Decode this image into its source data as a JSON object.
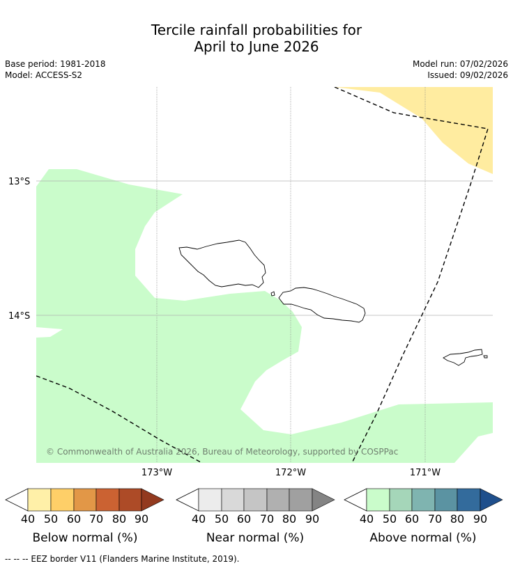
{
  "header": {
    "title_line1": "Tercile rainfall probabilities for",
    "title_line2": "April to June 2026",
    "base_period": "Base period: 1981-2018",
    "model": "Model: ACCESS-S2",
    "model_run": "Model run: 07/02/2026",
    "issued": "Issued: 09/02/2026"
  },
  "map": {
    "lat_labels": [
      "13°S",
      "14°S"
    ],
    "lon_labels": [
      "173°W",
      "172°W",
      "171°W"
    ],
    "copyright": "© Commonwealth of Australia 2026, Bureau of Meteorology, supported by COSPPac",
    "features": {
      "below_normal_40_50": "Below normal 40-50% region (north-east)",
      "above_normal_40_50": "Above normal 40-50% region",
      "eez_border": "EEZ border",
      "islands": [
        "Savai'i",
        "Upolu",
        "Tutuila"
      ]
    }
  },
  "legends": [
    {
      "label": "Below normal (%)",
      "ticks": [
        "40",
        "50",
        "60",
        "70",
        "80",
        "90"
      ],
      "colors": [
        "#fff0a8",
        "#fecf68",
        "#e29747",
        "#cb6232",
        "#ad4b27",
        "#933a1f"
      ]
    },
    {
      "label": "Near normal (%)",
      "ticks": [
        "40",
        "50",
        "60",
        "70",
        "80",
        "90"
      ],
      "colors": [
        "#ececec",
        "#d9d9d9",
        "#c5c5c5",
        "#b0b0b0",
        "#a0a0a0",
        "#848484"
      ]
    },
    {
      "label": "Above normal (%)",
      "ticks": [
        "40",
        "50",
        "60",
        "70",
        "80",
        "90"
      ],
      "colors": [
        "#cafccb",
        "#a5d6b9",
        "#7fb4b0",
        "#5b93a2",
        "#336b9c",
        "#1f4f8c"
      ]
    }
  ],
  "footer": {
    "eez_note": "--  --  -- EEZ border V11 (Flanders Marine Institute, 2019)."
  },
  "colors": {
    "below_fill": "#ffeca0",
    "above_fill": "#cafccb",
    "grid": "#888888",
    "copyright_text": "#6f7f6f"
  }
}
